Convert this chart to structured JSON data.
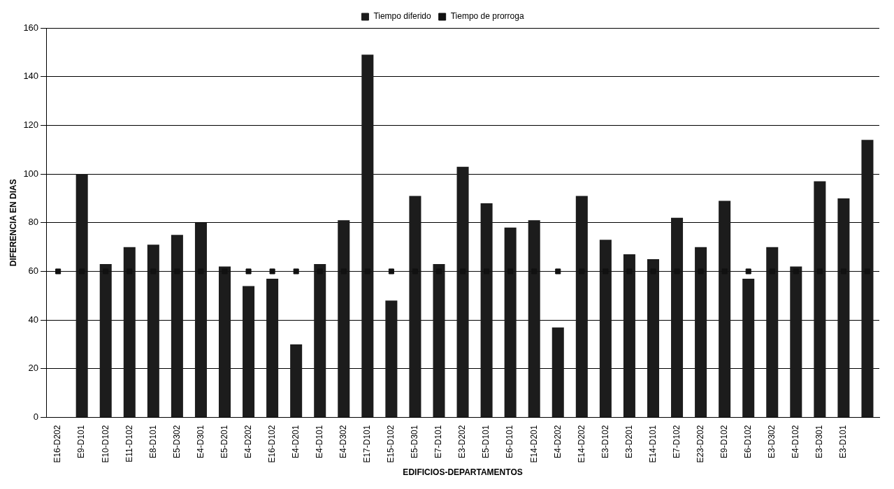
{
  "chart_data": {
    "type": "bar",
    "xlabel": "EDIFICIOS-DEPARTAMENTOS",
    "ylabel": "DIFERENCIA EN DIAS",
    "categories": [
      "E16-D202",
      "E9-D101",
      "E10-D102",
      "E11-D102",
      "E8-D101",
      "E5-D302",
      "E4-D301",
      "E5-D201",
      "E4-D202",
      "E16-D102",
      "E4-D201",
      "E4-D101",
      "E4-D302",
      "E17-D101",
      "E15-D102",
      "E5-D301",
      "E7-D101",
      "E3-D202",
      "E5-D101",
      "E6-D101",
      "E14-D201",
      "E4-D202",
      "E14-D202",
      "E3-D102",
      "E3-D201",
      "E14-D101",
      "E7-D102",
      "E23-D202",
      "E9-D102",
      "E6-D102",
      "E3-D302",
      "E4-D102",
      "E3-D301",
      "E3-D101",
      null
    ],
    "series": [
      {
        "name": "Tiempo diferido",
        "color": "#1c1c1c",
        "values": [
          0,
          100,
          63,
          70,
          71,
          75,
          80,
          62,
          54,
          57,
          30,
          63,
          81,
          149,
          48,
          91,
          63,
          103,
          88,
          78,
          81,
          37,
          91,
          73,
          67,
          65,
          82,
          70,
          89,
          57,
          70,
          62,
          97,
          90,
          114
        ]
      },
      {
        "name": "Tiempo de prorroga",
        "type": "line",
        "color": "#111111",
        "values": [
          60,
          60,
          60,
          60,
          60,
          60,
          60,
          60,
          60,
          60,
          60,
          60,
          60,
          60,
          60,
          60,
          60,
          60,
          60,
          60,
          60,
          60,
          60,
          60,
          60,
          60,
          60,
          60,
          60,
          60,
          60,
          60,
          60,
          60,
          60
        ]
      }
    ],
    "ylim": [
      0,
      160
    ],
    "yticks": [
      0,
      20,
      40,
      60,
      80,
      100,
      120,
      140,
      160
    ],
    "grid": "y",
    "legend": "top",
    "marker": "square"
  }
}
